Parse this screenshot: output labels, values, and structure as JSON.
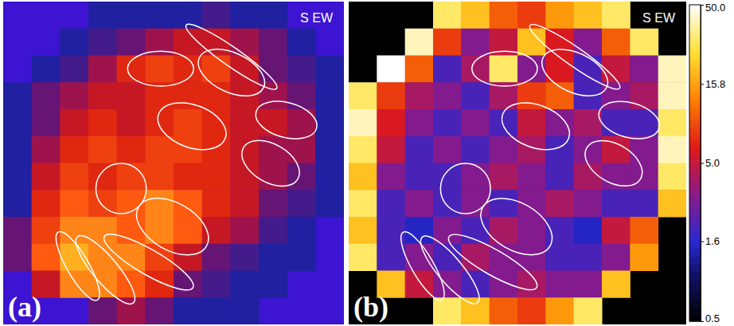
{
  "chart_data": [
    {
      "type": "heatmap",
      "title": "S EW",
      "panel_label": "(a)",
      "zlim": [
        0,
        10
      ],
      "cells": [
        [
          null,
          null,
          null,
          1,
          1,
          1,
          1,
          1.5,
          1,
          1,
          null,
          null
        ],
        [
          null,
          null,
          1,
          1.5,
          2,
          3,
          4,
          4,
          3,
          2,
          1,
          null
        ],
        [
          null,
          1,
          1.5,
          3,
          5,
          6,
          5,
          6,
          4,
          2,
          1.5,
          1
        ],
        [
          1,
          2,
          3,
          4,
          4,
          5,
          5,
          5,
          4,
          3,
          2,
          1
        ],
        [
          1,
          2,
          4,
          5,
          4,
          5,
          6,
          5,
          4,
          4,
          3,
          1
        ],
        [
          1,
          3,
          5,
          6,
          5,
          6,
          6,
          5,
          4,
          3,
          3,
          1
        ],
        [
          1,
          4,
          6,
          5,
          6,
          6,
          5,
          5,
          4,
          3,
          2,
          1
        ],
        [
          1,
          5,
          7,
          6,
          7,
          8,
          7,
          5,
          4,
          2,
          1.5,
          1
        ],
        [
          2,
          6,
          8,
          8,
          7,
          8,
          7,
          4,
          3,
          1.5,
          1,
          null
        ],
        [
          2,
          7,
          9,
          8,
          8,
          6,
          4,
          2,
          1.5,
          1,
          1,
          null
        ],
        [
          null,
          4,
          8,
          8,
          7,
          5,
          2,
          1.5,
          1,
          1,
          null,
          null
        ],
        [
          null,
          null,
          null,
          2,
          3,
          2,
          1,
          1,
          1,
          null,
          null,
          null
        ]
      ]
    },
    {
      "type": "heatmap",
      "title": "S EW",
      "panel_label": "(b)",
      "colorbar": {
        "range": [
          0.5,
          50
        ],
        "log": true,
        "ticks": [
          0.5,
          1.6,
          {
            "value": 5,
            "label": "5.0"
          },
          15.8,
          {
            "value": 50,
            "label": "50.0"
          }
        ]
      },
      "cells": [
        [
          null,
          null,
          null,
          30,
          20,
          10,
          8,
          15,
          20,
          30,
          null,
          null
        ],
        [
          null,
          null,
          40,
          8,
          3,
          5,
          20,
          6,
          3,
          10,
          30,
          null
        ],
        [
          null,
          50,
          10,
          2,
          4,
          30,
          3,
          6,
          2,
          5,
          3,
          40
        ],
        [
          30,
          8,
          4,
          3,
          2,
          4,
          8,
          10,
          2,
          3,
          4,
          40
        ],
        [
          40,
          6,
          3,
          2,
          3,
          2,
          5,
          3,
          4,
          2,
          2,
          30
        ],
        [
          30,
          5,
          2,
          3,
          2,
          3,
          4,
          2,
          3,
          5,
          3,
          40
        ],
        [
          20,
          3,
          2,
          2,
          3,
          4,
          3,
          2,
          4,
          3,
          3,
          30
        ],
        [
          30,
          2,
          3,
          2,
          3,
          2,
          3,
          4,
          3,
          2,
          2,
          20
        ],
        [
          20,
          2,
          1.5,
          3,
          2,
          4,
          3,
          2,
          1.5,
          5,
          10,
          null
        ],
        [
          30,
          2,
          3,
          2,
          4,
          3,
          3,
          2,
          2,
          3,
          15,
          null
        ],
        [
          null,
          20,
          5,
          3,
          2,
          3,
          4,
          3,
          3,
          20,
          null,
          null
        ],
        [
          null,
          null,
          null,
          30,
          20,
          10,
          8,
          15,
          30,
          null,
          null,
          null
        ]
      ]
    }
  ]
}
